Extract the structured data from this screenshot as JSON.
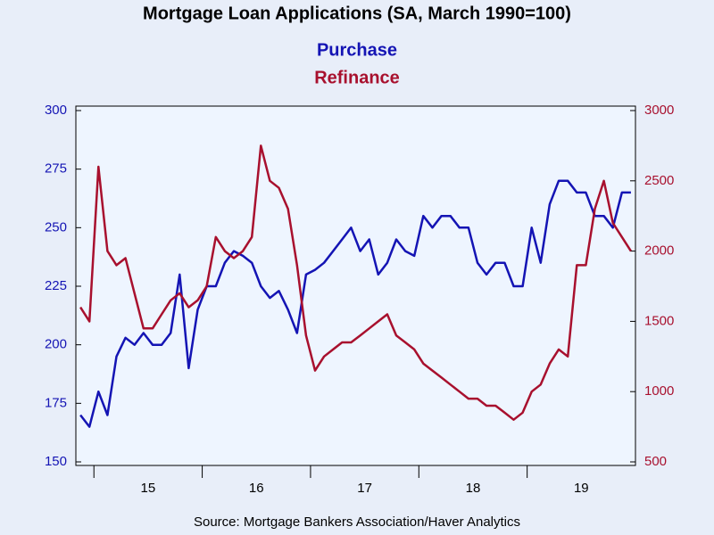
{
  "chart_data": {
    "type": "line",
    "title": "Mortgage Loan Applications (SA, March 1990=100)",
    "source": "Source:  Mortgage Bankers Association/Haver Analytics",
    "categories": [
      null,
      null,
      null,
      null,
      null,
      null,
      null,
      null,
      "15",
      null,
      null,
      null,
      null,
      null,
      null,
      null,
      null,
      null,
      null,
      null,
      "16",
      null,
      null,
      null,
      null,
      null,
      null,
      null,
      null,
      null,
      null,
      null,
      "17",
      null,
      null,
      null,
      null,
      null,
      null,
      null,
      null,
      null,
      null,
      null,
      "18",
      null,
      null,
      null,
      null,
      null,
      null,
      null,
      null,
      null,
      null,
      null,
      "19",
      null,
      null,
      null,
      null,
      null
    ],
    "series": [
      {
        "name": "Purchase",
        "color": "#1414b4",
        "values": [
          170,
          165,
          180,
          170,
          195,
          203,
          200,
          205,
          200,
          200,
          205,
          230,
          190,
          215,
          225,
          225,
          235,
          240,
          238,
          235,
          225,
          220,
          223,
          215,
          205,
          230,
          232,
          235,
          240,
          245,
          250,
          240,
          245,
          230,
          235,
          245,
          240,
          238,
          255,
          250,
          255,
          255,
          250,
          250,
          235,
          230,
          235,
          235,
          225,
          225,
          250,
          235,
          260,
          270,
          270,
          265,
          265,
          255,
          255,
          250,
          265,
          265
        ]
      },
      {
        "name": "Refinance",
        "color": "#a8102e",
        "axis": "y2",
        "values": [
          1600,
          1500,
          2600,
          2000,
          1900,
          1950,
          1700,
          1450,
          1450,
          1550,
          1650,
          1700,
          1600,
          1650,
          1750,
          2100,
          2000,
          1950,
          2000,
          2100,
          2750,
          2500,
          2450,
          2300,
          1900,
          1400,
          1150,
          1250,
          1300,
          1350,
          1350,
          1400,
          1450,
          1500,
          1550,
          1400,
          1350,
          1300,
          1200,
          1150,
          1100,
          1050,
          1000,
          950,
          950,
          900,
          900,
          850,
          800,
          850,
          1000,
          1050,
          1200,
          1300,
          1250,
          1900,
          1900,
          2300,
          2500,
          2200,
          2100,
          2000
        ]
      }
    ],
    "ylim": [
      150,
      300
    ],
    "yticks": [
      150,
      175,
      200,
      225,
      250,
      275,
      300
    ],
    "y2lim": [
      500,
      3000
    ],
    "y2ticks": [
      500,
      1000,
      1500,
      2000,
      2500,
      3000
    ]
  }
}
